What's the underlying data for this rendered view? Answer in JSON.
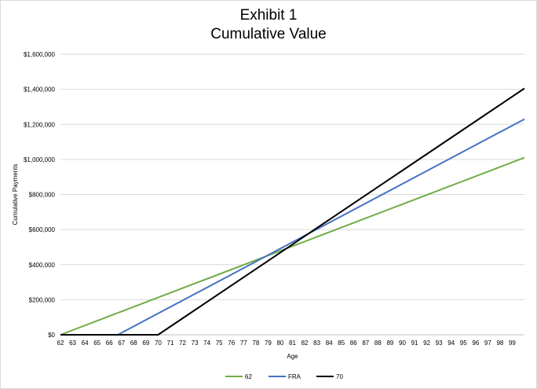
{
  "chart_data": {
    "type": "line",
    "title": "Exhibit 1",
    "subtitle": "Cumulative Value",
    "xlabel": "Age",
    "ylabel": "Cumulative Payments",
    "xlim": [
      62,
      100
    ],
    "ylim": [
      0,
      1600000
    ],
    "x_ticks": [
      62,
      63,
      64,
      65,
      66,
      67,
      68,
      69,
      70,
      71,
      72,
      73,
      74,
      75,
      76,
      77,
      78,
      79,
      80,
      81,
      82,
      83,
      84,
      85,
      86,
      87,
      88,
      89,
      90,
      91,
      92,
      93,
      94,
      95,
      96,
      97,
      98,
      99
    ],
    "y_ticks": [
      {
        "value": 0,
        "label": "$0"
      },
      {
        "value": 200000,
        "label": "$200,000"
      },
      {
        "value": 400000,
        "label": "$400,000"
      },
      {
        "value": 600000,
        "label": "$600,000"
      },
      {
        "value": 800000,
        "label": "$800,000"
      },
      {
        "value": 1000000,
        "label": "$1,000,000"
      },
      {
        "value": 1200000,
        "label": "$1,200,000"
      },
      {
        "value": 1400000,
        "label": "$1,400,000"
      },
      {
        "value": 1600000,
        "label": "$1,600,000"
      }
    ],
    "grid": "horizontal",
    "legend_position": "bottom",
    "series": [
      {
        "name": "62",
        "color": "#70ad47",
        "points": [
          [
            62,
            0
          ],
          [
            100,
            1010000
          ]
        ]
      },
      {
        "name": "FRA",
        "color": "#4472c4",
        "points": [
          [
            62,
            0
          ],
          [
            66.7,
            0
          ],
          [
            100,
            1230000
          ]
        ]
      },
      {
        "name": "70",
        "color": "#000000",
        "points": [
          [
            62,
            0
          ],
          [
            70,
            0
          ],
          [
            100,
            1405000
          ]
        ]
      }
    ]
  }
}
